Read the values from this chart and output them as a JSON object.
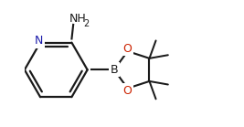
{
  "bg_color": "#ffffff",
  "line_color": "#1a1a1a",
  "line_width": 1.6,
  "figsize": [
    2.67,
    1.39
  ],
  "dpi": 100,
  "xlim": [
    -1.0,
    5.2
  ],
  "ylim": [
    -1.8,
    2.2
  ]
}
